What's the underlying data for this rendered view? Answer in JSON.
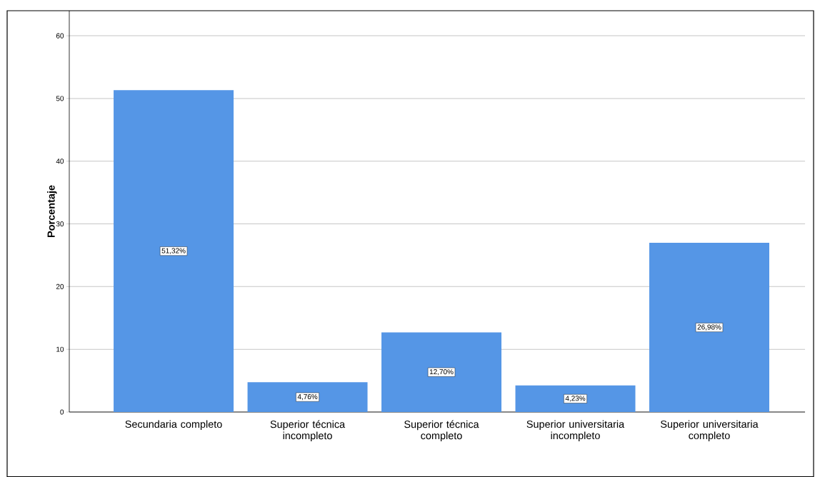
{
  "chart_data": {
    "type": "bar",
    "ylabel": "Porcentaje",
    "categories": [
      "Secundaria completo",
      "Superior técnica incompleto",
      "Superior técnica completo",
      "Superior universitaria incompleto",
      "Superior universitaria completo"
    ],
    "values": [
      51.32,
      4.76,
      12.7,
      4.23,
      26.98
    ],
    "value_labels": [
      "51,32%",
      "4,76%",
      "12,70%",
      "4,23%",
      "26,98%"
    ],
    "color": "#5596e6",
    "ylim": [
      0,
      64
    ],
    "yticks": [
      0,
      10,
      20,
      30,
      40,
      50,
      60
    ],
    "grid": "y"
  }
}
